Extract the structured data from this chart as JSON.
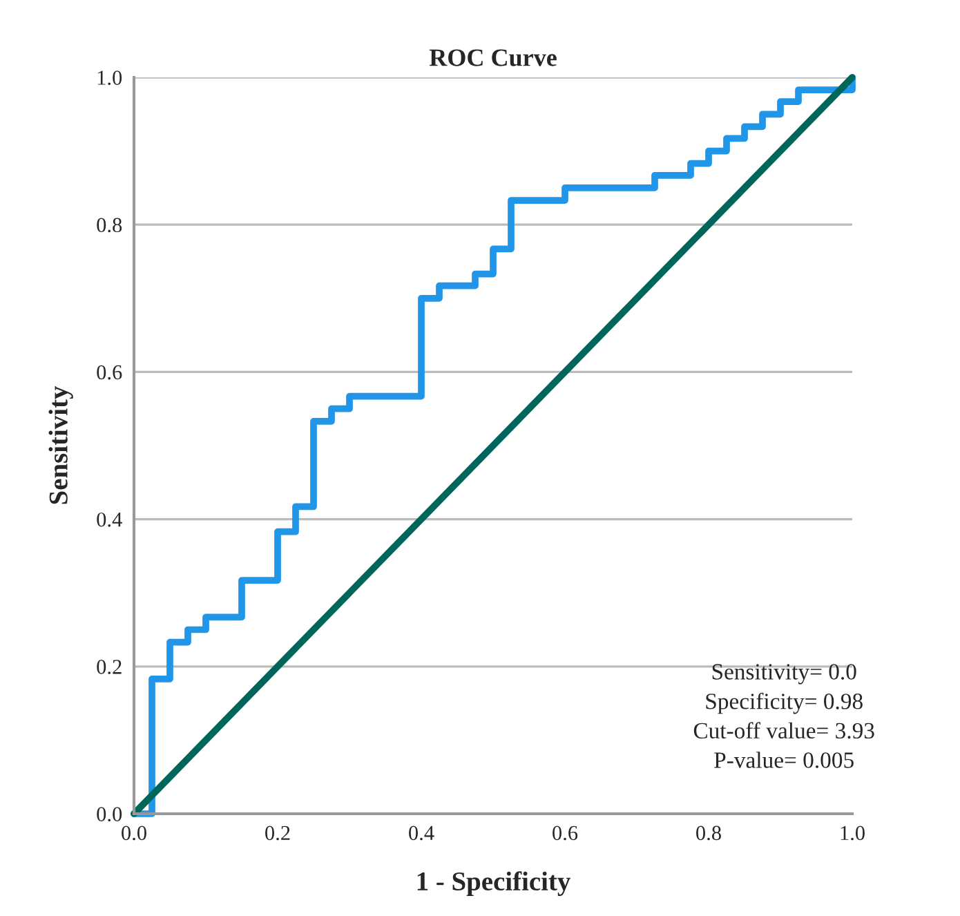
{
  "chart_data": {
    "type": "line",
    "title": "ROC Curve",
    "xlabel": "1 - Specificity",
    "ylabel": "Sensitivity",
    "series": [
      {
        "color": "#2196e8",
        "x": [
          0,
          0.025,
          0.025,
          0.05,
          0.05,
          0.075,
          0.075,
          0.1,
          0.1,
          0.15,
          0.15,
          0.2,
          0.2,
          0.225,
          0.225,
          0.25,
          0.25,
          0.275,
          0.275,
          0.3,
          0.3,
          0.4,
          0.4,
          0.425,
          0.425,
          0.475,
          0.475,
          0.5,
          0.5,
          0.525,
          0.525,
          0.6,
          0.6,
          0.725,
          0.725,
          0.775,
          0.775,
          0.8,
          0.8,
          0.825,
          0.825,
          0.85,
          0.85,
          0.875,
          0.875,
          0.9,
          0.9,
          0.925,
          0.925,
          1.0,
          1.0
        ],
        "values": [
          0,
          0,
          0.183,
          0.183,
          0.233,
          0.233,
          0.25,
          0.25,
          0.267,
          0.267,
          0.317,
          0.317,
          0.383,
          0.383,
          0.417,
          0.417,
          0.533,
          0.533,
          0.55,
          0.55,
          0.567,
          0.567,
          0.7,
          0.7,
          0.717,
          0.717,
          0.733,
          0.733,
          0.767,
          0.767,
          0.833,
          0.833,
          0.85,
          0.85,
          0.867,
          0.867,
          0.883,
          0.883,
          0.9,
          0.9,
          0.917,
          0.917,
          0.933,
          0.933,
          0.95,
          0.95,
          0.967,
          0.967,
          0.983,
          0.983,
          1.0
        ]
      },
      {
        "color": "#00665c",
        "x": [
          0,
          1
        ],
        "values": [
          0,
          1
        ]
      }
    ],
    "xlim": [
      0,
      1
    ],
    "ylim": [
      0,
      1
    ],
    "xticks": [
      {
        "value": 0,
        "label": "0.0"
      },
      0.2,
      0.4,
      0.6,
      0.8,
      {
        "value": 1,
        "label": "1.0"
      }
    ],
    "yticks": [
      {
        "value": 0,
        "label": "0.0"
      },
      0.2,
      0.4,
      0.6,
      0.8,
      {
        "value": 1,
        "label": "1.0"
      }
    ],
    "grid": "y",
    "legend": false,
    "line_style": "solid",
    "marker": "none",
    "annotations": [
      "Sensitivity= 0.0",
      "Specificity= 0.98",
      "Cut-off value= 3.93",
      "P-value= 0.005"
    ]
  }
}
